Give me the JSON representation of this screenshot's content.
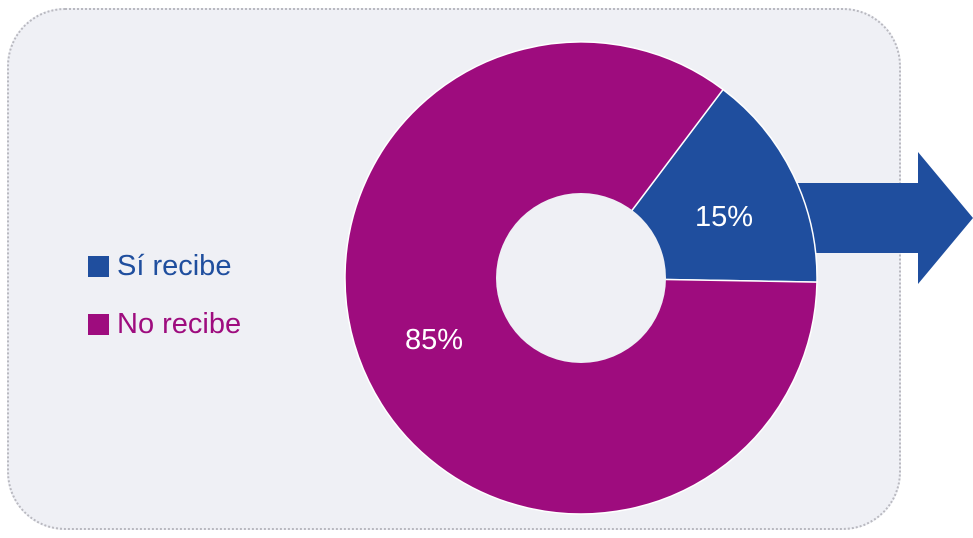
{
  "colors": {
    "panel_bg": "#eff0f5",
    "panel_border": "#b9b9c0",
    "si": "#1f4e9e",
    "no": "#9e0c7e",
    "arrow": "#1f4e9e"
  },
  "chart_data": {
    "type": "pie",
    "subtype": "doughnut",
    "categories": [
      "Sí recibe",
      "No recibe"
    ],
    "values": [
      15,
      85
    ],
    "data_labels": [
      "15%",
      "85%"
    ],
    "colors": [
      "#1f4e9e",
      "#9e0c7e"
    ],
    "legend_position": "left",
    "annotation": "arrow pointing right from the 15% slice"
  }
}
